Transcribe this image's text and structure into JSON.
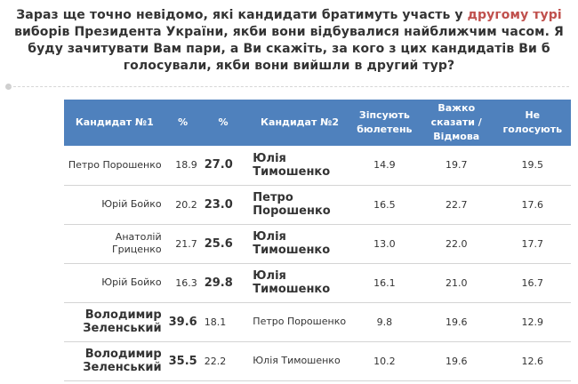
{
  "question": {
    "part1": "Зараз ще точно невідомо, які кандидати братимуть участь у ",
    "highlight": "другому турі",
    "part2": " виборів Президента України, якби вони відбувалися найближчим часом. Я буду зачитувати Вам пари, а Ви скажіть, за кого з цих кандидатів Ви б голосували, якби вони вийшли в другий тур?"
  },
  "table": {
    "headers": {
      "cand1": "Кандидат №1",
      "pct1": "%",
      "pct2": "%",
      "cand2": "Кандидат №2",
      "spoil": "Зіпсують бюлетень",
      "hard": "Важко сказати / Відмова",
      "novote": "Не голосують"
    },
    "rows": [
      {
        "cand1": "Петро Порошенко",
        "pct1": "18.9",
        "pct2": "27.0",
        "cand2": "Юлія Тимошенко",
        "spoil": "14.9",
        "hard": "19.7",
        "novote": "19.5"
      },
      {
        "cand1": "Юрій Бойко",
        "pct1": "20.2",
        "pct2": "23.0",
        "cand2": "Петро Порошенко",
        "spoil": "16.5",
        "hard": "22.7",
        "novote": "17.6"
      },
      {
        "cand1": "Анатолій Гриценко",
        "pct1": "21.7",
        "pct2": "25.6",
        "cand2": "Юлія Тимошенко",
        "spoil": "13.0",
        "hard": "22.0",
        "novote": "17.7"
      },
      {
        "cand1": "Юрій Бойко",
        "pct1": "16.3",
        "pct2": "29.8",
        "cand2": "Юлія Тимошенко",
        "spoil": "16.1",
        "hard": "21.0",
        "novote": "16.7"
      },
      {
        "cand1": "Володимир Зеленський",
        "pct1": "39.6",
        "pct2": "18.1",
        "cand2": "Петро Порошенко",
        "spoil": "9.8",
        "hard": "19.6",
        "novote": "12.9"
      },
      {
        "cand1": "Володимир Зеленський",
        "pct1": "35.5",
        "pct2": "22.2",
        "cand2": "Юлія Тимошенко",
        "spoil": "10.2",
        "hard": "19.6",
        "novote": "12.6"
      }
    ]
  },
  "colors": {
    "header_bg": "#4f81bd",
    "winner": "#c0504d"
  }
}
